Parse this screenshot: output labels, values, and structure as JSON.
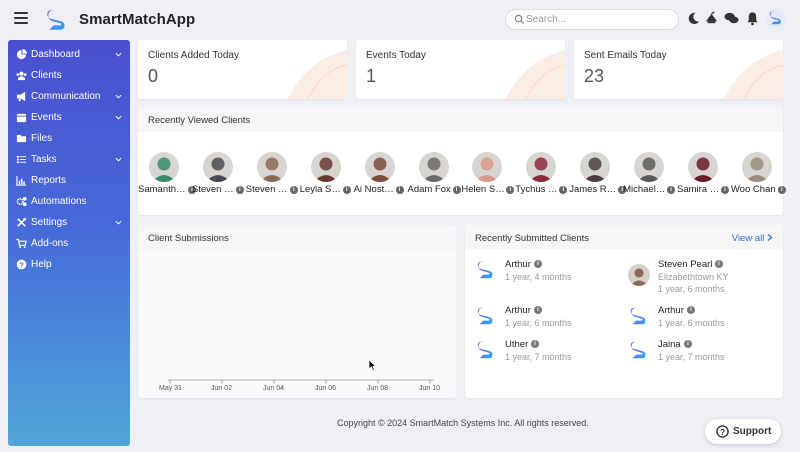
{
  "app": {
    "title": "SmartMatchApp"
  },
  "search": {
    "placeholder": "Search..."
  },
  "sidebar": {
    "items": [
      {
        "label": "Dashboard",
        "icon": "dashboard-icon",
        "has_chevron": true
      },
      {
        "label": "Clients",
        "icon": "users-icon",
        "has_chevron": false
      },
      {
        "label": "Communication",
        "icon": "bullhorn-icon",
        "has_chevron": true
      },
      {
        "label": "Events",
        "icon": "calendar-icon",
        "has_chevron": true
      },
      {
        "label": "Files",
        "icon": "folder-icon",
        "has_chevron": false
      },
      {
        "label": "Tasks",
        "icon": "list-icon",
        "has_chevron": true
      },
      {
        "label": "Reports",
        "icon": "chart-icon",
        "has_chevron": false
      },
      {
        "label": "Automations",
        "icon": "cogs-icon",
        "has_chevron": false
      },
      {
        "label": "Settings",
        "icon": "tools-icon",
        "has_chevron": true
      },
      {
        "label": "Add-ons",
        "icon": "cart-icon",
        "has_chevron": false
      },
      {
        "label": "Help",
        "icon": "question-icon",
        "has_chevron": false
      }
    ]
  },
  "stats": [
    {
      "title": "Clients Added Today",
      "value": "0"
    },
    {
      "title": "Events Today",
      "value": "1"
    },
    {
      "title": "Sent Emails Today",
      "value": "23"
    }
  ],
  "recent_viewed": {
    "title": "Recently Viewed Clients",
    "clients": [
      {
        "name": "Samanth…",
        "color": "#3a8a6a"
      },
      {
        "name": "Steven …",
        "color": "#4a4a52"
      },
      {
        "name": "Steven …",
        "color": "#8a6a52"
      },
      {
        "name": "Leyla S…",
        "color": "#6a3a32"
      },
      {
        "name": "Ai Nost…",
        "color": "#7a4a3a"
      },
      {
        "name": "Adam Fox",
        "color": "#6a6a6a"
      },
      {
        "name": "Helen S…",
        "color": "#d89a8a"
      },
      {
        "name": "Tychus …",
        "color": "#8a2a3a"
      },
      {
        "name": "James R…",
        "color": "#4a4040"
      },
      {
        "name": "Michael…",
        "color": "#5a5a5a"
      },
      {
        "name": "Samira …",
        "color": "#6a1a2a"
      },
      {
        "name": "Woo Chan",
        "color": "#9a8a7a"
      }
    ]
  },
  "submissions": {
    "title": "Client Submissions",
    "chart_data": {
      "type": "line",
      "x": [
        "May 31",
        "Jun 02",
        "Jun 04",
        "Jun 06",
        "Jun 08",
        "Jun 10"
      ],
      "series": []
    }
  },
  "recent_submitted": {
    "title": "Recently Submitted Clients",
    "view_all": "View all",
    "items": [
      {
        "name": "Arthur",
        "time": "1 year, 4 months",
        "location": "",
        "avatar": "logo"
      },
      {
        "name": "Steven Pearl",
        "time": "1 year, 6 months",
        "location": "Elizabethtown KY",
        "avatar": "photo"
      },
      {
        "name": "Arthur",
        "time": "1 year, 6 months",
        "location": "",
        "avatar": "logo"
      },
      {
        "name": "Arthur",
        "time": "1 year, 6 months",
        "location": "",
        "avatar": "logo"
      },
      {
        "name": "Uther",
        "time": "1 year, 7 months",
        "location": "",
        "avatar": "logo"
      },
      {
        "name": "Jaina",
        "time": "1 year, 7 months",
        "location": "",
        "avatar": "logo"
      }
    ]
  },
  "footer": {
    "text": "Copyright © 2024 SmartMatch Systems Inc. All rights reserved."
  },
  "support": {
    "label": "Support"
  },
  "colors": {
    "accent": "#3c6fd6",
    "sidebar_top": "#4a4fcf",
    "sidebar_bottom": "#52a5d6"
  }
}
